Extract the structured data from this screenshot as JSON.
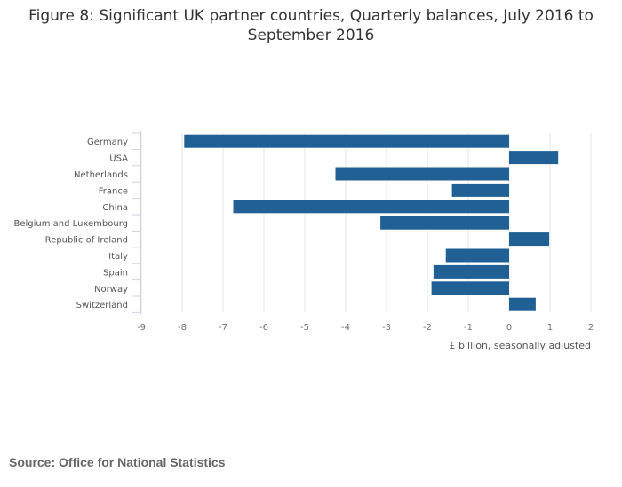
{
  "title": "Figure 8: Significant UK partner countries, Quarterly balances, July 2016 to September 2016",
  "source": "Source: Office for National Statistics",
  "colors": {
    "bar": "#206095",
    "grid": "#e6e6e6",
    "axis_text": "#707070",
    "label_text": "#555555",
    "title": "#333333"
  },
  "chart_data": {
    "type": "bar",
    "orientation": "horizontal",
    "title": "Figure 8: Significant UK partner countries, Quarterly balances, July 2016 to September 2016",
    "xlabel": "£ billion, seasonally adjusted",
    "ylabel": "",
    "categories": [
      "Germany",
      "USA",
      "Netherlands",
      "France",
      "China",
      "Belgium and Luxembourg",
      "Republic of Ireland",
      "Italy",
      "Spain",
      "Norway",
      "Switzerland"
    ],
    "values": [
      -7.95,
      1.2,
      -4.25,
      -1.4,
      -6.75,
      -3.15,
      0.98,
      -1.55,
      -1.85,
      -1.9,
      0.65
    ],
    "xlim": [
      -9,
      2
    ],
    "xticks": [
      "-9",
      "-8",
      "-7",
      "-6",
      "-5",
      "-4",
      "-3",
      "-2",
      "-1",
      "0",
      "1",
      "2"
    ],
    "grid": true
  }
}
